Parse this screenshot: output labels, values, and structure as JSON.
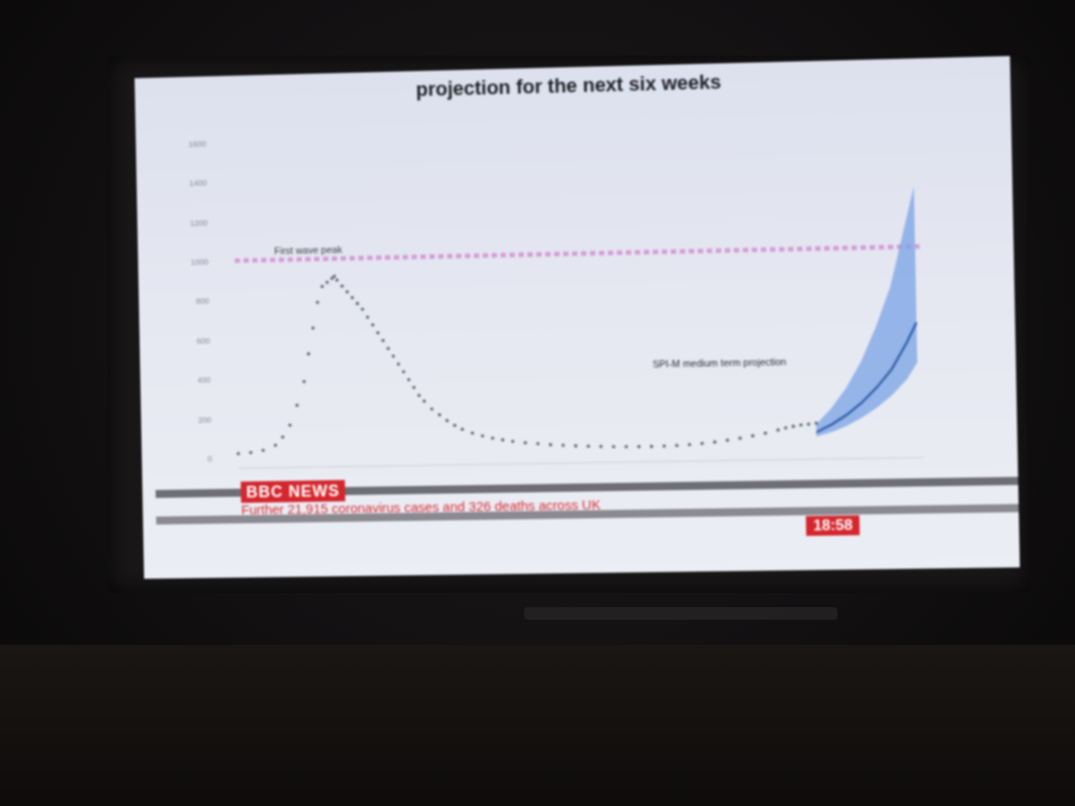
{
  "tv": {
    "title": "projection for the next six weeks",
    "ticker": {
      "logo": "BBC NEWS",
      "headline": "Further 21,915 coronavirus cases and 326 deaths across UK",
      "time": "18:58"
    }
  },
  "colors": {
    "observed": "#555b66",
    "projection_line": "#2f5fa8",
    "projection_band": "#7aa3e6",
    "first_wave_line": "#d59bd8",
    "axis_text": "#8a8c96"
  },
  "chart_data": {
    "type": "line",
    "title": "projection for the next six weeks",
    "xlabel": "",
    "ylabel": "",
    "ylim": [
      0,
      1600
    ],
    "yticks": [
      0,
      200,
      400,
      600,
      800,
      1000,
      1200,
      1400,
      1600
    ],
    "grid": false,
    "x_range_days": [
      0,
      270
    ],
    "first_wave_peak": {
      "label": "First wave peak",
      "value": 1000
    },
    "projection_label": "SPI-M medium term projection",
    "series": [
      {
        "type": "scatter",
        "x": [
          0,
          5,
          10,
          15,
          18,
          21,
          24,
          27,
          29,
          31,
          33,
          35,
          37,
          39,
          40,
          41,
          43,
          45,
          47,
          49,
          51,
          53,
          55,
          57,
          59,
          61,
          63,
          65,
          67,
          69,
          71,
          73,
          75,
          78,
          81,
          84,
          87,
          90,
          94,
          98,
          102,
          106,
          110,
          115,
          120,
          125,
          130,
          135,
          140,
          145,
          150,
          155,
          160,
          165,
          170,
          175,
          180,
          185,
          190,
          195,
          200,
          205,
          210,
          215,
          218,
          221,
          224,
          227,
          230
        ],
        "y": [
          20,
          25,
          35,
          60,
          100,
          160,
          260,
          380,
          520,
          650,
          780,
          860,
          880,
          900,
          910,
          890,
          860,
          830,
          800,
          770,
          740,
          700,
          660,
          620,
          580,
          540,
          500,
          460,
          420,
          380,
          340,
          300,
          270,
          230,
          200,
          170,
          145,
          125,
          105,
          90,
          78,
          68,
          60,
          52,
          46,
          40,
          36,
          32,
          29,
          27,
          25,
          24,
          23,
          23,
          24,
          26,
          29,
          34,
          40,
          48,
          57,
          68,
          80,
          95,
          105,
          112,
          118,
          122,
          126
        ]
      },
      {
        "type": "line",
        "x": [
          230,
          236,
          242,
          248,
          254,
          260,
          266,
          270
        ],
        "y": [
          80,
          118,
          165,
          225,
          300,
          390,
          520,
          620
        ]
      },
      {
        "type": "area",
        "x": [
          230,
          236,
          242,
          248,
          254,
          260,
          266,
          270
        ],
        "y_low": [
          60,
          80,
          110,
          150,
          200,
          260,
          340,
          420
        ],
        "y_high": [
          120,
          200,
          300,
          430,
          600,
          800,
          1100,
          1300
        ]
      }
    ]
  }
}
